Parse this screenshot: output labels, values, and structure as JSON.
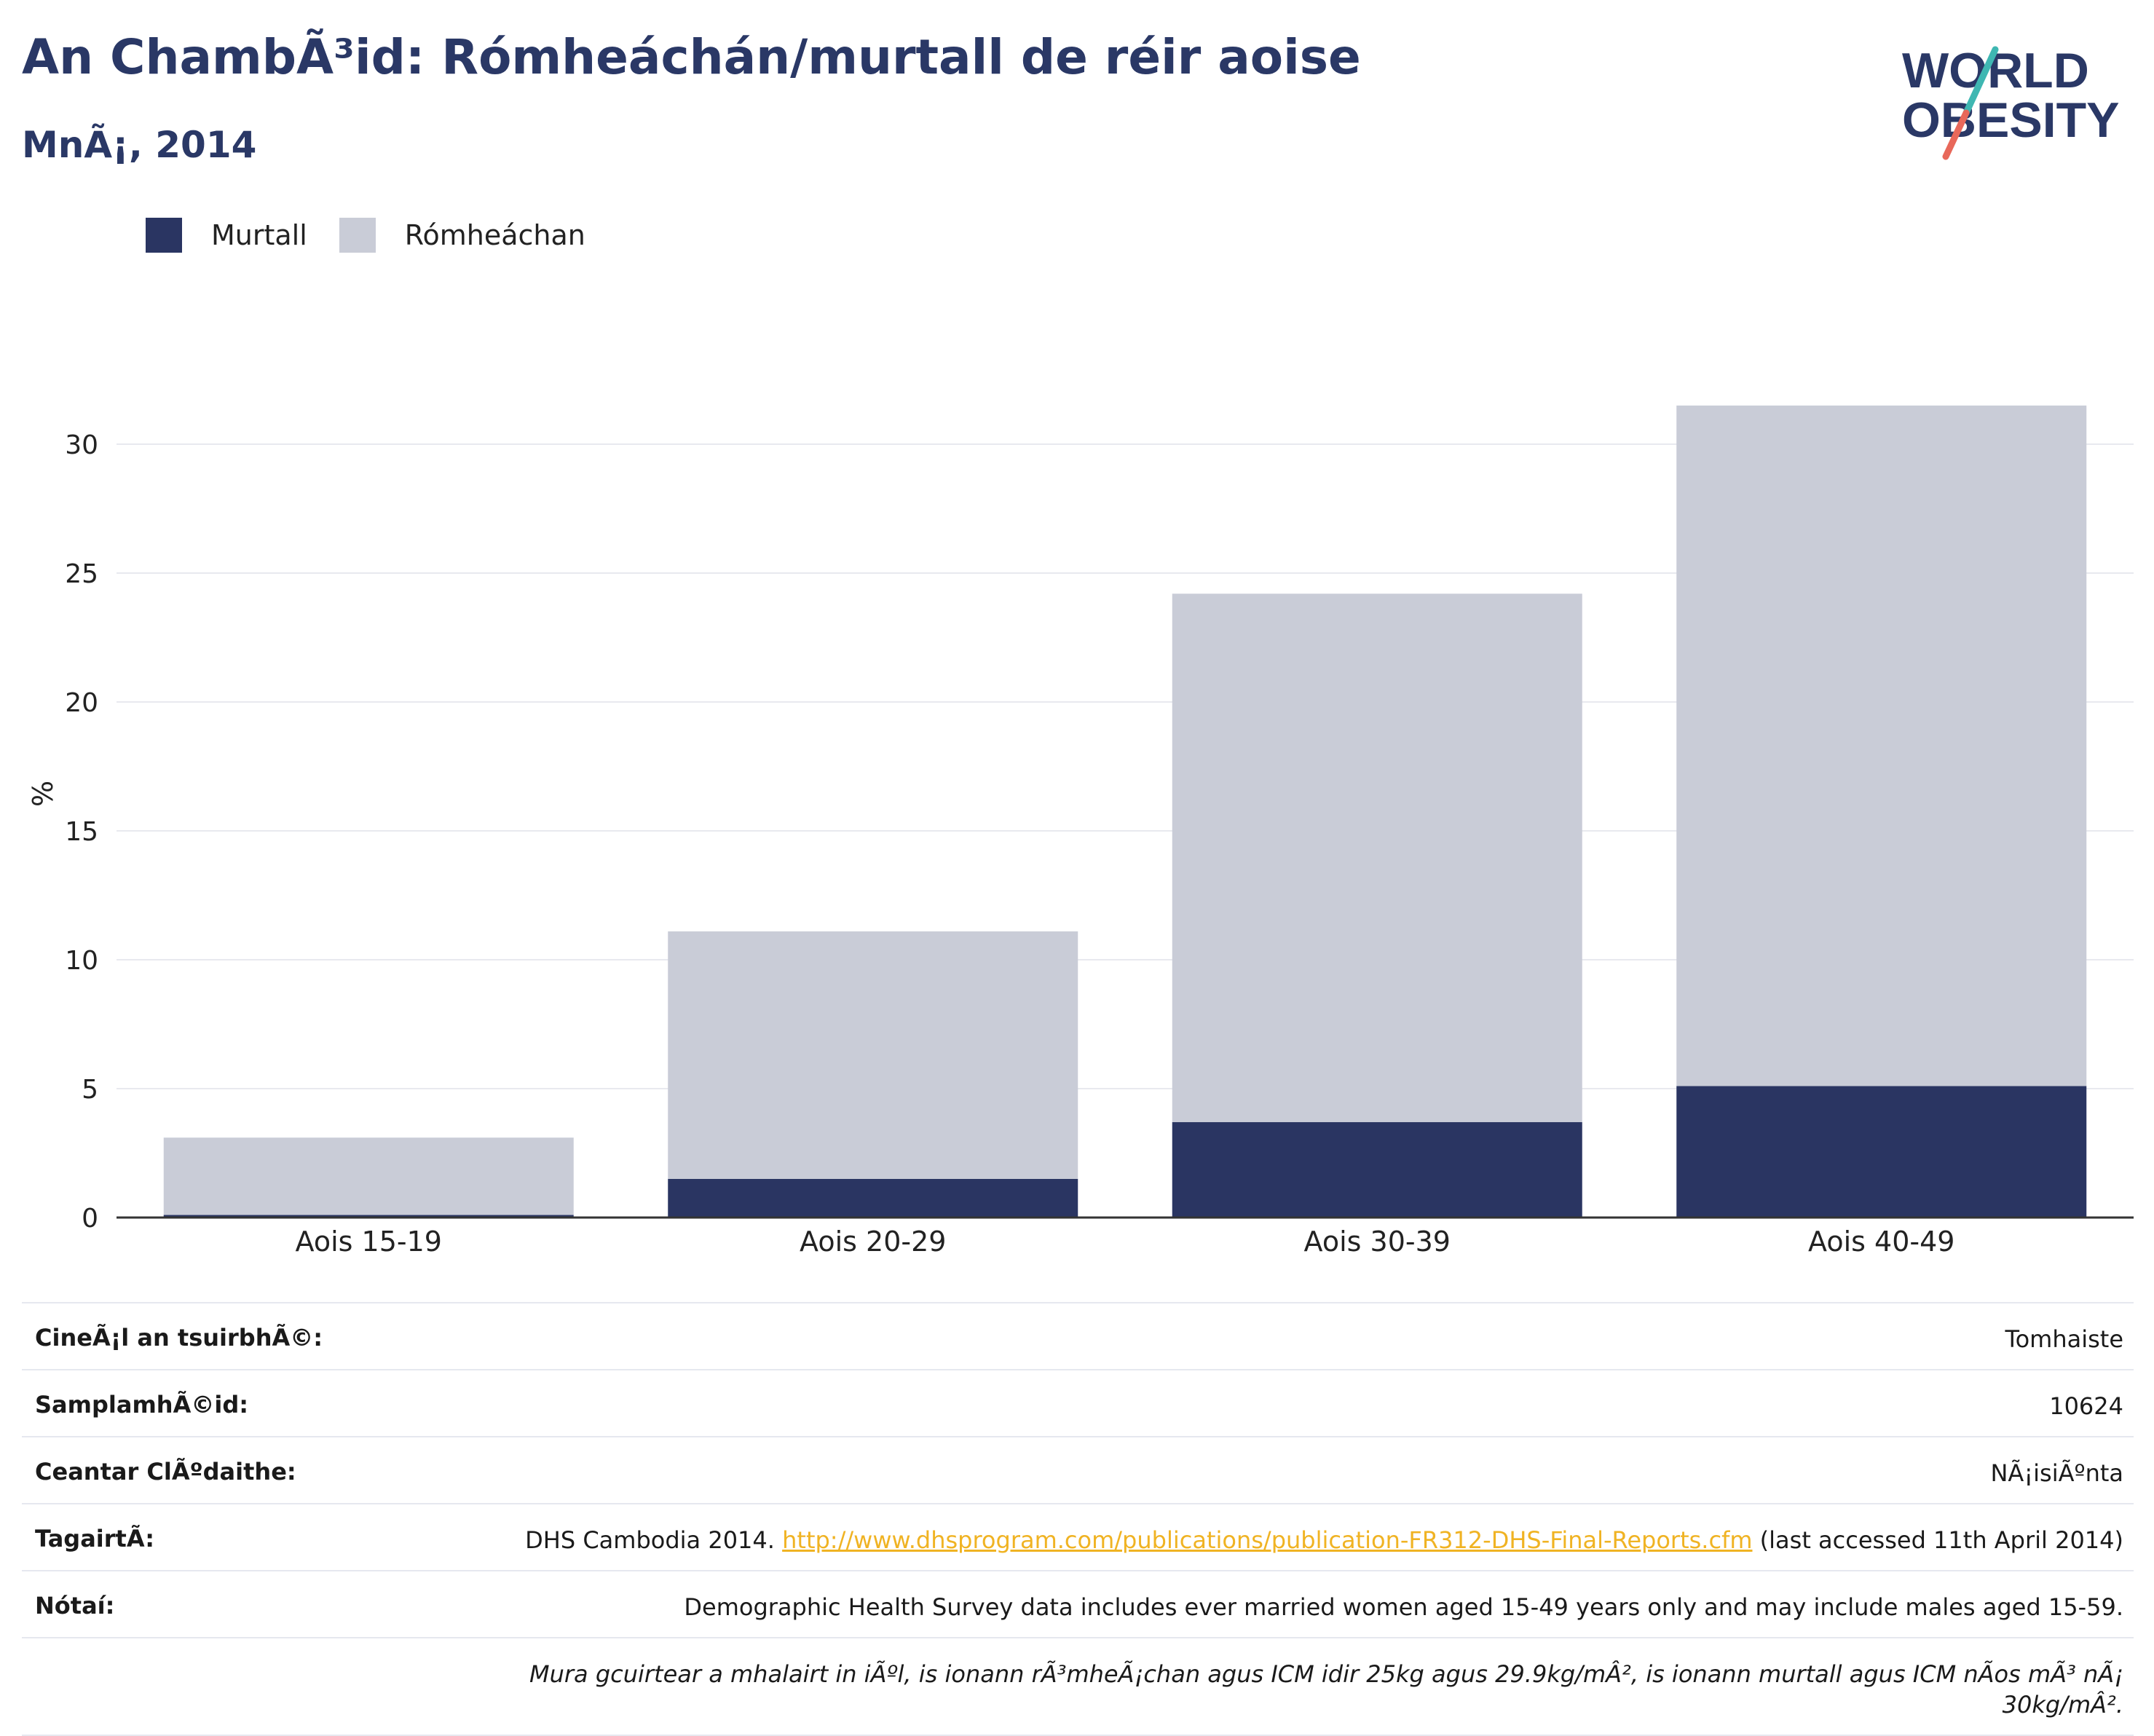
{
  "header": {
    "title": "An ChambÃ³id: Rómheáchán/murtall de réir aoise",
    "subtitle": "MnÃ¡, 2014"
  },
  "logo": {
    "line1": "WORLD",
    "line2": "OBESITY",
    "colors": {
      "text": "#2a3866",
      "slash_top": "#3fb7b2",
      "slash_bottom": "#e8685a"
    }
  },
  "legend": {
    "items": [
      {
        "label": "Murtall",
        "color": "#2a3562"
      },
      {
        "label": "Rómheáchan",
        "color": "#c9ccd7"
      }
    ]
  },
  "chart_data": {
    "type": "bar",
    "stacked": true,
    "categories": [
      "Aois 15-19",
      "Aois 20-29",
      "Aois 30-39",
      "Aois 40-49"
    ],
    "series": [
      {
        "name": "Murtall",
        "color": "#2a3562",
        "values": [
          0.1,
          1.5,
          3.7,
          5.1
        ]
      },
      {
        "name": "Rómheáchan",
        "color": "#c9ccd7",
        "values": [
          3.0,
          9.6,
          20.5,
          26.4
        ]
      }
    ],
    "ylabel": "%",
    "yticks": [
      0,
      5,
      10,
      15,
      20,
      25,
      30
    ],
    "ylim": [
      0,
      33
    ],
    "grid": true,
    "legend_position": "top-left"
  },
  "info_table": {
    "rows": [
      {
        "label": "CineÃ¡l an tsuirbhÃ©:",
        "value": "Tomhaiste"
      },
      {
        "label": "SamplamhÃ©id:",
        "value": "10624"
      },
      {
        "label": "Ceantar ClÃºdaithe:",
        "value": "NÃ¡isiÃºnta"
      }
    ],
    "reference": {
      "label": "TagairtÃ:",
      "prefix": "DHS Cambodia 2014. ",
      "link": "http://www.dhsprogram.com/publications/publication-FR312-DHS-Final-Reports.cfm",
      "suffix": " (last accessed 11th April 2014)"
    },
    "notes": {
      "label": "Nótaí:",
      "value": "Demographic Health Survey data includes ever married women aged 15-49 years only and may include males aged 15-59.",
      "definition": "Mura gcuirtear a mhalairt in iÃºl, is ionann rÃ³mheÃ¡chan agus ICM idir 25kg agus 29.9kg/mÂ², is ionann murtall agus ICM nÃos mÃ³ nÃ¡ 30kg/mÂ²."
    }
  }
}
